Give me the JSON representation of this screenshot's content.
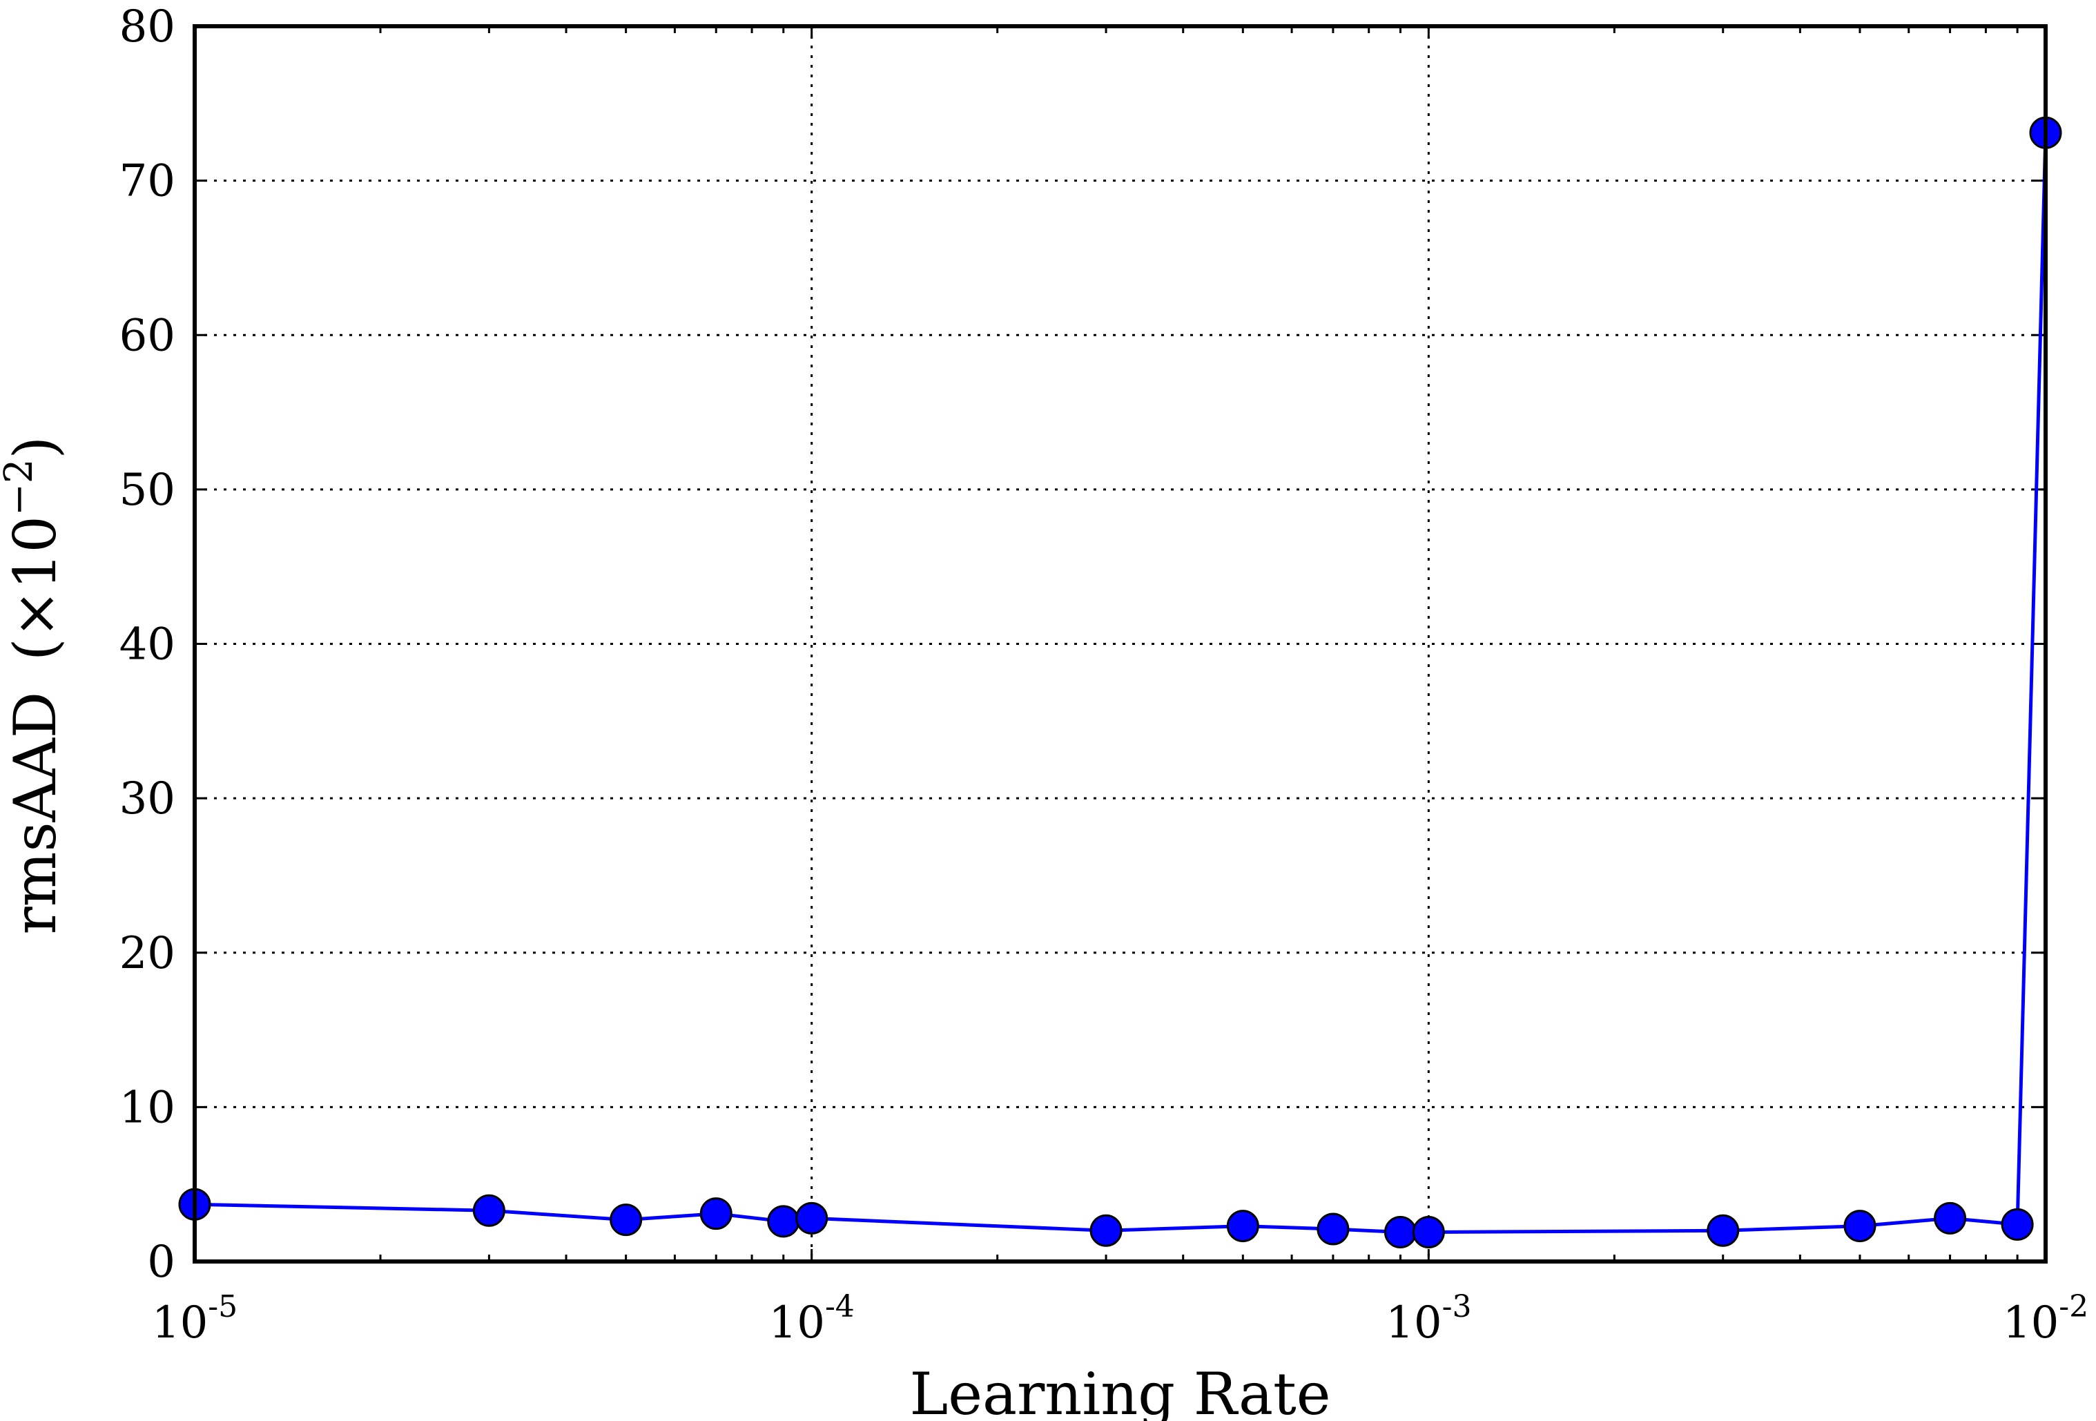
{
  "chart_data": {
    "type": "line",
    "title": "",
    "xlabel": "Learning Rate",
    "ylabel_main": "rmsAAD",
    "ylabel_factor": "×10",
    "ylabel_exponent": "−2",
    "xscale": "log",
    "xlim": [
      1e-05,
      0.01
    ],
    "ylim": [
      0,
      80
    ],
    "grid": true,
    "x_ticks": [
      {
        "value": 1e-05,
        "base": "10",
        "exp": "-5"
      },
      {
        "value": 0.0001,
        "base": "10",
        "exp": "-4"
      },
      {
        "value": 0.001,
        "base": "10",
        "exp": "-3"
      },
      {
        "value": 0.01,
        "base": "10",
        "exp": "-2"
      }
    ],
    "y_ticks": [
      {
        "value": 0,
        "label": "0"
      },
      {
        "value": 10,
        "label": "10"
      },
      {
        "value": 20,
        "label": "20"
      },
      {
        "value": 30,
        "label": "30"
      },
      {
        "value": 40,
        "label": "40"
      },
      {
        "value": 50,
        "label": "50"
      },
      {
        "value": 60,
        "label": "60"
      },
      {
        "value": 70,
        "label": "70"
      },
      {
        "value": 80,
        "label": "80"
      }
    ],
    "series": [
      {
        "color": "#0000ff",
        "marker": "circle",
        "x": [
          1e-05,
          3e-05,
          5e-05,
          7e-05,
          9e-05,
          0.0001,
          0.0003,
          0.0005,
          0.0007,
          0.0009,
          0.001,
          0.003,
          0.005,
          0.007,
          0.009,
          0.01
        ],
        "y": [
          3.7,
          3.3,
          2.7,
          3.1,
          2.6,
          2.8,
          2.0,
          2.3,
          2.1,
          1.9,
          1.9,
          2.0,
          2.3,
          2.8,
          2.4,
          73.1
        ]
      }
    ]
  }
}
